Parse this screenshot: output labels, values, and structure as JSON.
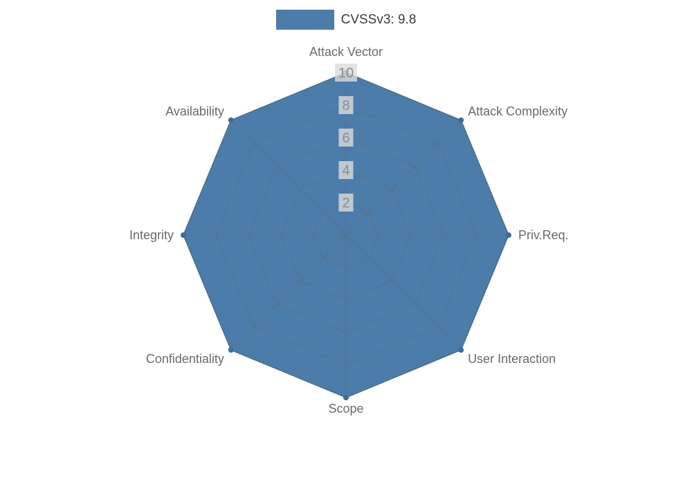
{
  "chart_data": {
    "type": "radar",
    "title": "",
    "legend": {
      "label": "CVSSv3: 9.8",
      "position": "top-center"
    },
    "categories": [
      "Attack Vector",
      "Attack Complexity",
      "Priv.Req.",
      "User Interaction",
      "Scope",
      "Confidentiality",
      "Integrity",
      "Availability"
    ],
    "series": [
      {
        "name": "CVSSv3: 9.8",
        "values": [
          10,
          10,
          10,
          10,
          10,
          10,
          10,
          10
        ]
      }
    ],
    "ticks": [
      2,
      4,
      6,
      8,
      10
    ],
    "rlim": [
      0,
      10
    ],
    "grid": true,
    "colors": {
      "fill": "#4c7ca9",
      "stroke": "#44719c",
      "marker": "#3f6c99",
      "grid": "#666666",
      "axis_label": "#6a6a6a",
      "tick_label": "#8c8c8c",
      "tick_bg": "#dcdcdc",
      "legend_text": "#3c3c3c"
    }
  }
}
